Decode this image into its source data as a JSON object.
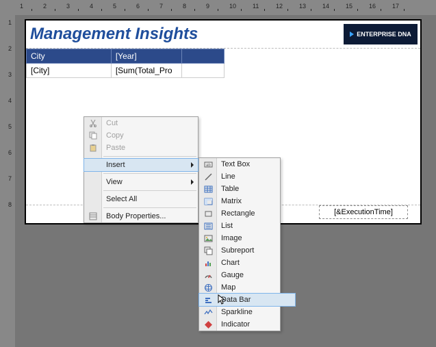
{
  "ruler": {
    "h": [
      1,
      2,
      3,
      4,
      5,
      6,
      7,
      8,
      9,
      10,
      11,
      12,
      13,
      14,
      15,
      16,
      17
    ],
    "v": [
      1,
      2,
      3,
      4,
      5,
      6,
      7,
      8
    ]
  },
  "report": {
    "title": "Management Insights",
    "logo_text": "ENTERPRISE DNA",
    "table": {
      "headers": [
        "City",
        "[Year]",
        ""
      ],
      "row": [
        "[City]",
        "[Sum(Total_Pro",
        ""
      ]
    },
    "footer": "[&ExecutionTime]"
  },
  "context_menu": {
    "items": [
      {
        "label": "Cut",
        "icon": "cut-icon",
        "disabled": true
      },
      {
        "label": "Copy",
        "icon": "copy-icon",
        "disabled": true
      },
      {
        "label": "Paste",
        "icon": "paste-icon",
        "disabled": true
      },
      {
        "sep": true
      },
      {
        "label": "Insert",
        "icon": "",
        "submenu": true,
        "hovered": true
      },
      {
        "sep": true
      },
      {
        "label": "View",
        "icon": "",
        "submenu": true
      },
      {
        "sep": true
      },
      {
        "label": "Select All",
        "icon": ""
      },
      {
        "sep": true
      },
      {
        "label": "Body Properties...",
        "icon": "props-icon"
      }
    ]
  },
  "insert_submenu": {
    "items": [
      {
        "label": "Text Box",
        "icon": "textbox-icon"
      },
      {
        "label": "Line",
        "icon": "line-icon"
      },
      {
        "label": "Table",
        "icon": "table-icon"
      },
      {
        "label": "Matrix",
        "icon": "matrix-icon"
      },
      {
        "label": "Rectangle",
        "icon": "rect-icon"
      },
      {
        "label": "List",
        "icon": "list-icon"
      },
      {
        "label": "Image",
        "icon": "image-icon"
      },
      {
        "label": "Subreport",
        "icon": "subreport-icon"
      },
      {
        "label": "Chart",
        "icon": "chart-icon"
      },
      {
        "label": "Gauge",
        "icon": "gauge-icon"
      },
      {
        "label": "Map",
        "icon": "map-icon"
      },
      {
        "label": "Data Bar",
        "icon": "databar-icon",
        "highlight": true
      },
      {
        "label": "Sparkline",
        "icon": "sparkline-icon"
      },
      {
        "label": "Indicator",
        "icon": "indicator-icon"
      }
    ]
  },
  "colors": {
    "title": "#1f4e9c",
    "table_header_bg": "#2c4a8a",
    "logo_bg": "#0d1b36",
    "canvas_bg": "#767676"
  }
}
